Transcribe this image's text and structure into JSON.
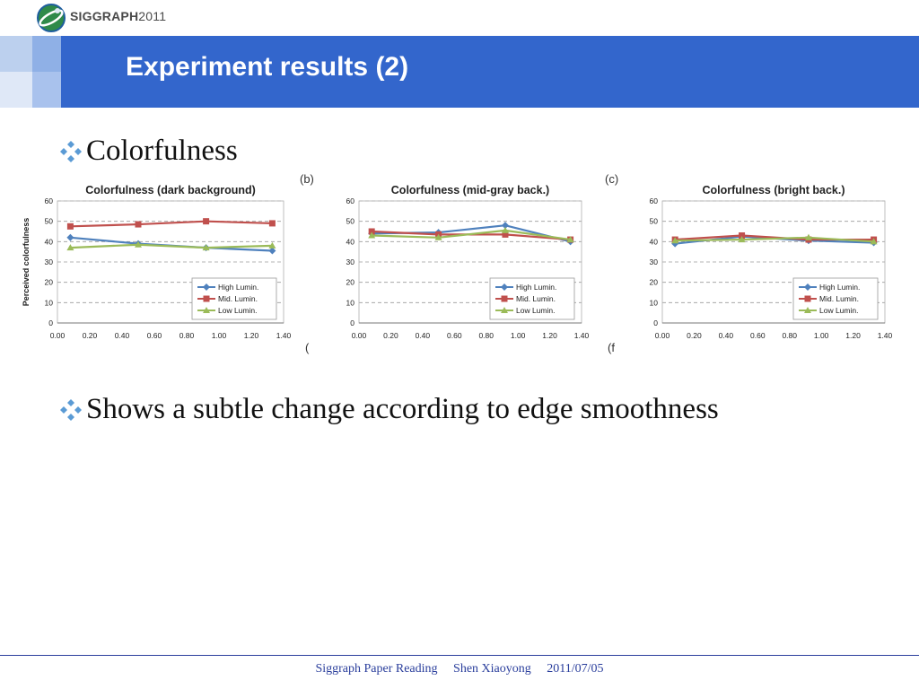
{
  "brand": {
    "logo_text": "SIGGRAPH",
    "logo_year": "2011"
  },
  "slide": {
    "title": "Experiment results (2)"
  },
  "bullets": [
    {
      "text": "Colorfulness"
    },
    {
      "text": "Shows a subtle change according to edge smoothness"
    }
  ],
  "panel_captions": [
    "(b)",
    "(c)",
    "(",
    "(f"
  ],
  "colors": {
    "high": "#4f81bd",
    "mid": "#c0504d",
    "low": "#9bbb59",
    "title_bar": "#3366cc",
    "footer": "#2a3e9c"
  },
  "chart_data": [
    {
      "type": "line",
      "title": "Colorfulness (dark background)",
      "ylabel": "Perceived colorfulness",
      "xlim": [
        0,
        1.4
      ],
      "ylim": [
        0,
        60
      ],
      "x_ticks": [
        "0.00",
        "0.20",
        "0.40",
        "0.60",
        "0.80",
        "1.00",
        "1.20",
        "1.40"
      ],
      "y_ticks": [
        "0",
        "10",
        "20",
        "30",
        "40",
        "50",
        "60"
      ],
      "legend": "bottom-right",
      "series": [
        {
          "name": "High Lumin.",
          "x": [
            0.08,
            0.5,
            0.92,
            1.33
          ],
          "y": [
            42,
            39,
            37,
            35.5
          ]
        },
        {
          "name": "Mid. Lumin.",
          "x": [
            0.08,
            0.5,
            0.92,
            1.33
          ],
          "y": [
            47.5,
            48.5,
            50,
            49
          ]
        },
        {
          "name": "Low Lumin.",
          "x": [
            0.08,
            0.5,
            0.92,
            1.33
          ],
          "y": [
            37,
            38.5,
            37,
            38
          ]
        }
      ]
    },
    {
      "type": "line",
      "title": "Colorfulness (mid-gray back.)",
      "ylabel": "",
      "xlim": [
        0,
        1.4
      ],
      "ylim": [
        0,
        60
      ],
      "x_ticks": [
        "0.00",
        "0.20",
        "0.40",
        "0.60",
        "0.80",
        "1.00",
        "1.20",
        "1.40"
      ],
      "y_ticks": [
        "0",
        "10",
        "20",
        "30",
        "40",
        "50",
        "60"
      ],
      "legend": "bottom-right",
      "series": [
        {
          "name": "High Lumin.",
          "x": [
            0.08,
            0.5,
            0.92,
            1.33
          ],
          "y": [
            44,
            44.5,
            48,
            40
          ]
        },
        {
          "name": "Mid. Lumin.",
          "x": [
            0.08,
            0.5,
            0.92,
            1.33
          ],
          "y": [
            45,
            43.5,
            43.5,
            41
          ]
        },
        {
          "name": "Low Lumin.",
          "x": [
            0.08,
            0.5,
            0.92,
            1.33
          ],
          "y": [
            43,
            42,
            45.5,
            41
          ]
        }
      ]
    },
    {
      "type": "line",
      "title": "Colorfulness (bright back.)",
      "ylabel": "",
      "xlim": [
        0,
        1.4
      ],
      "ylim": [
        0,
        60
      ],
      "x_ticks": [
        "0.00",
        "0.20",
        "0.40",
        "0.60",
        "0.80",
        "1.00",
        "1.20",
        "1.40"
      ],
      "y_ticks": [
        "0",
        "10",
        "20",
        "30",
        "40",
        "50",
        "60"
      ],
      "legend": "bottom-right",
      "series": [
        {
          "name": "High Lumin.",
          "x": [
            0.08,
            0.5,
            0.92,
            1.33
          ],
          "y": [
            39,
            42.5,
            40.5,
            39.5
          ]
        },
        {
          "name": "Mid. Lumin.",
          "x": [
            0.08,
            0.5,
            0.92,
            1.33
          ],
          "y": [
            41,
            43,
            41,
            41
          ]
        },
        {
          "name": "Low Lumin.",
          "x": [
            0.08,
            0.5,
            0.92,
            1.33
          ],
          "y": [
            40.5,
            41,
            42,
            40
          ]
        }
      ]
    }
  ],
  "footer": {
    "event": "Siggraph Paper Reading",
    "author": "Shen Xiaoyong",
    "date": "2011/07/05"
  }
}
